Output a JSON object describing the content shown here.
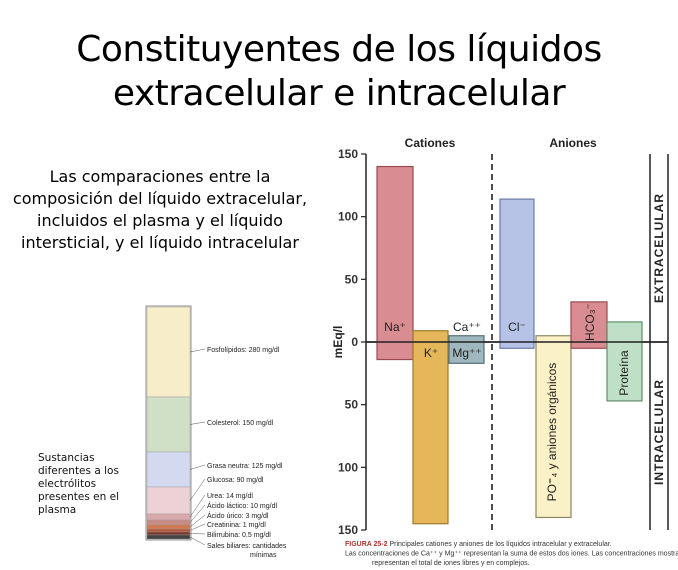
{
  "title": {
    "line1": "Constituyentes de los líquidos",
    "line2": "extracelular e intracelular"
  },
  "description": "Las comparaciones entre la composición del líquido extracelular, incluidos el plasma y el líquido intersticial, y el líquido intracelular",
  "side_label": "Sustancias diferentes a los electrólitos presentes en el plasma",
  "plasma_column": {
    "segments": [
      {
        "name": "Fosfolípidos",
        "value": 280,
        "label": "Fosfolípidos: 280 mg/dl",
        "color": "#f7edc9"
      },
      {
        "name": "Colesterol",
        "value": 150,
        "label": "Colesterol: 150 mg/dl",
        "color": "#cfe0c6"
      },
      {
        "name": "Grasa neutra",
        "value": 125,
        "label": "Grasa neutra: 125 mg/dl",
        "color": "#d3d9ef"
      },
      {
        "name": "Glucosa",
        "value": 90,
        "label": "Glucosa: 90 mg/dl",
        "color": "#ecd2d6"
      },
      {
        "name": "Urea",
        "value": 14,
        "label": "Urea: 14 mg/dl",
        "color": "#d9a9ac"
      },
      {
        "name": "Ácido láctico",
        "value": 10,
        "label": "Ácido láctico: 10 mg/dl",
        "color": "#c98c84"
      },
      {
        "name": "Ácido úrico",
        "value": 3,
        "label": "Ácido úrico: 3 mg/dl",
        "color": "#d2794f"
      },
      {
        "name": "Creatinina",
        "value": 1,
        "label": "Creatinina: 1 mg/dl",
        "color": "#b55a3c"
      },
      {
        "name": "Bilirrubina",
        "value": 0.5,
        "label": "Bilirrubina: 0.5 mg/dl",
        "color": "#7a3a2e"
      },
      {
        "name": "Sales biliares",
        "value": null,
        "label": "Sales biliares: cantidades mínimas",
        "color": "#444444"
      }
    ]
  },
  "chart_data": {
    "type": "bar",
    "headers": {
      "left": "Cationes",
      "right": "Aniones"
    },
    "ylabel": "mEq/l",
    "ylim_extracellular": [
      0,
      150
    ],
    "ylim_intracellular": [
      0,
      150
    ],
    "y_ticks": [
      "150",
      "100",
      "50",
      "0",
      "50",
      "100",
      "150"
    ],
    "side_labels": {
      "top": "EXTRACELULAR",
      "bottom": "INTRACELULAR"
    },
    "bars": [
      {
        "label": "Na⁺",
        "extracellular": 140,
        "intracellular": 14,
        "color": "#d98c91",
        "stroke": "#9a4a50"
      },
      {
        "label": "K⁺",
        "extracellular": 9,
        "intracellular": 145,
        "color": "#e6b75a",
        "stroke": "#9c7a2c"
      },
      {
        "label": "Ca⁺⁺",
        "label_bottom": "Mg⁺⁺",
        "extracellular": 5,
        "intracellular": 17,
        "color": "#9fb7bf",
        "stroke": "#556f77"
      },
      {
        "label": "Cl⁻",
        "extracellular": 114,
        "intracellular": 5,
        "color": "#b7c3e6",
        "stroke": "#6b7aa8"
      },
      {
        "label": "PO⁼₄ y aniones orgánicos",
        "extracellular": 5,
        "intracellular": 140,
        "color": "#fbf1c7",
        "stroke": "#8f8560"
      },
      {
        "label": "HCO₃⁻",
        "extracellular": 32,
        "intracellular": 5,
        "color": "#d98c91",
        "stroke": "#9a4a50"
      },
      {
        "label": "Proteína",
        "extracellular": 16,
        "intracellular": 47,
        "color": "#bfe0c7",
        "stroke": "#5f8f6b"
      }
    ],
    "caption": {
      "label": "FIGURA 25-2",
      "text": "Principales cationes y aniones de los líquidos intracelular y extracelular. Las concentraciones de Ca⁺⁺ y Mg⁺⁺ representan la suma de estos dos iones. Las concentraciones mostradas representan el total de iones libres y en complejos."
    }
  },
  "colors": {
    "axis": "#222222",
    "text": "#000000"
  }
}
